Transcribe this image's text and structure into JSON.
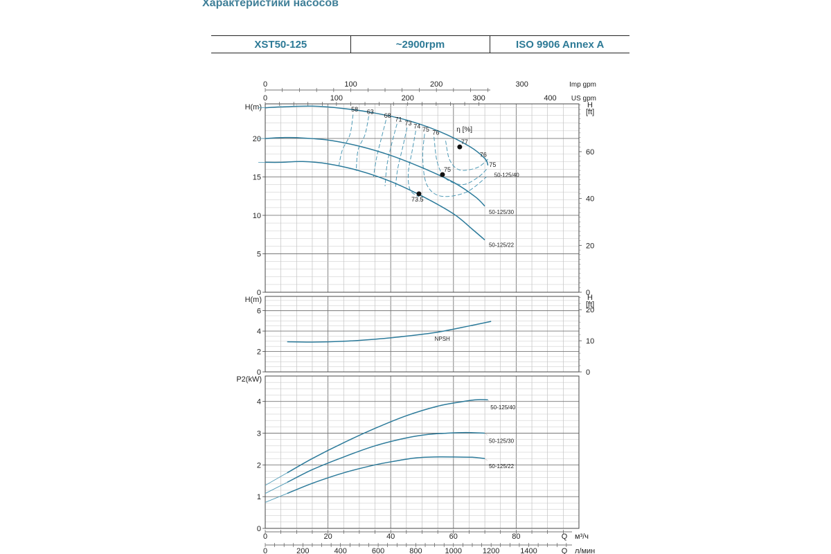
{
  "page_title": "Характеристики насосов",
  "header": {
    "model": "XST50-125",
    "speed": "~2900rpm",
    "standard": "ISO 9906   Annex A"
  },
  "colors": {
    "curve": "#2b7a9a",
    "efficiency": "#4f9ab6",
    "grid": "#9a9a9a",
    "title": "#3f7f98"
  },
  "axes": {
    "imp_gpm": {
      "label": "Imp gpm",
      "ticks": [
        "0",
        "100",
        "200",
        "300"
      ]
    },
    "us_gpm": {
      "label": "US gpm",
      "ticks": [
        "0",
        "100",
        "200",
        "300",
        "400"
      ]
    },
    "q_m3h": {
      "prefix": "Q",
      "unit": "м³/ч",
      "ticks": [
        "0",
        "20",
        "40",
        "60",
        "80"
      ],
      "range": [
        0,
        100
      ]
    },
    "q_lmin": {
      "prefix": "Q",
      "unit": "л/мин",
      "ticks": [
        "0",
        "200",
        "400",
        "600",
        "800",
        "1000",
        "1200",
        "1400"
      ]
    }
  },
  "chart_data": [
    {
      "type": "line",
      "panel": "head",
      "ylabel": "H(m)",
      "ylabel_right": "H",
      "ylabel_right_unit": "[ft]",
      "ylim": [
        0,
        24.5
      ],
      "yticks": [
        "0",
        "5",
        "10",
        "15",
        "20"
      ],
      "yticks_right": [
        "0",
        "20",
        "40",
        "60"
      ],
      "series": [
        {
          "name": "50-125/40",
          "x": [
            0,
            5,
            15,
            25,
            35,
            45,
            55,
            65,
            70,
            71
          ],
          "y": [
            24.0,
            24.1,
            24.2,
            23.9,
            23.3,
            22.4,
            21.0,
            19.0,
            17.4,
            16.5
          ]
        },
        {
          "name": "50-125/30",
          "x": [
            0,
            5,
            10,
            20,
            30,
            40,
            50,
            60,
            67,
            70
          ],
          "y": [
            20.0,
            20.1,
            20.1,
            19.8,
            19.0,
            17.8,
            16.2,
            14.3,
            12.4,
            11.2
          ]
        },
        {
          "name": "50-125/22",
          "x": [
            0,
            5,
            12,
            20,
            30,
            40,
            50,
            60,
            66,
            70
          ],
          "y": [
            16.9,
            16.9,
            17.0,
            16.7,
            15.8,
            14.4,
            12.5,
            10.2,
            8.2,
            6.8
          ]
        }
      ],
      "efficiency_label": "η [%]",
      "efficiency_iso_labels": [
        "58",
        "63",
        "68",
        "71",
        "73",
        "74",
        "75",
        "76"
      ],
      "efficiency_right_labels": [
        "76",
        "75"
      ],
      "best_efficiency_points": [
        {
          "curve": "50-125/40",
          "q": 62.0,
          "h": 18.9,
          "eta": "77"
        },
        {
          "curve": "50-125/30",
          "q": 56.5,
          "h": 15.3,
          "eta": "75"
        },
        {
          "curve": "50-125/22",
          "q": 49.0,
          "h": 12.8,
          "eta": "73.5"
        }
      ]
    },
    {
      "type": "line",
      "panel": "npsh",
      "ylabel": "H(m)",
      "ylabel_right": "H",
      "ylabel_right_unit": "[ft]",
      "ylim": [
        0,
        7.4
      ],
      "yticks": [
        "0",
        "2",
        "4",
        "6"
      ],
      "yticks_right": [
        "0",
        "10",
        "20"
      ],
      "series": [
        {
          "name": "NPSH",
          "x": [
            7,
            15,
            25,
            35,
            45,
            55,
            65,
            72
          ],
          "y": [
            2.95,
            2.92,
            3.0,
            3.2,
            3.5,
            3.9,
            4.5,
            4.95
          ]
        }
      ]
    },
    {
      "type": "line",
      "panel": "power",
      "ylabel": "P2(kW)",
      "ylim": [
        0,
        4.8
      ],
      "yticks": [
        "0",
        "1",
        "2",
        "3",
        "4"
      ],
      "series": [
        {
          "name": "50-125/40",
          "x": [
            7,
            15,
            25,
            35,
            45,
            55,
            62,
            67,
            71
          ],
          "y": [
            1.75,
            2.2,
            2.7,
            3.15,
            3.55,
            3.85,
            3.98,
            4.05,
            4.05
          ]
        },
        {
          "name": "50-125/30",
          "x": [
            7,
            15,
            25,
            35,
            45,
            52,
            58,
            64,
            70
          ],
          "y": [
            1.45,
            1.85,
            2.25,
            2.6,
            2.85,
            2.96,
            3.0,
            3.02,
            3.0
          ]
        },
        {
          "name": "50-125/22",
          "x": [
            7,
            15,
            25,
            35,
            42,
            48,
            54,
            60,
            66,
            70
          ],
          "y": [
            1.1,
            1.42,
            1.75,
            2.0,
            2.13,
            2.22,
            2.25,
            2.25,
            2.24,
            2.2
          ]
        }
      ]
    }
  ]
}
